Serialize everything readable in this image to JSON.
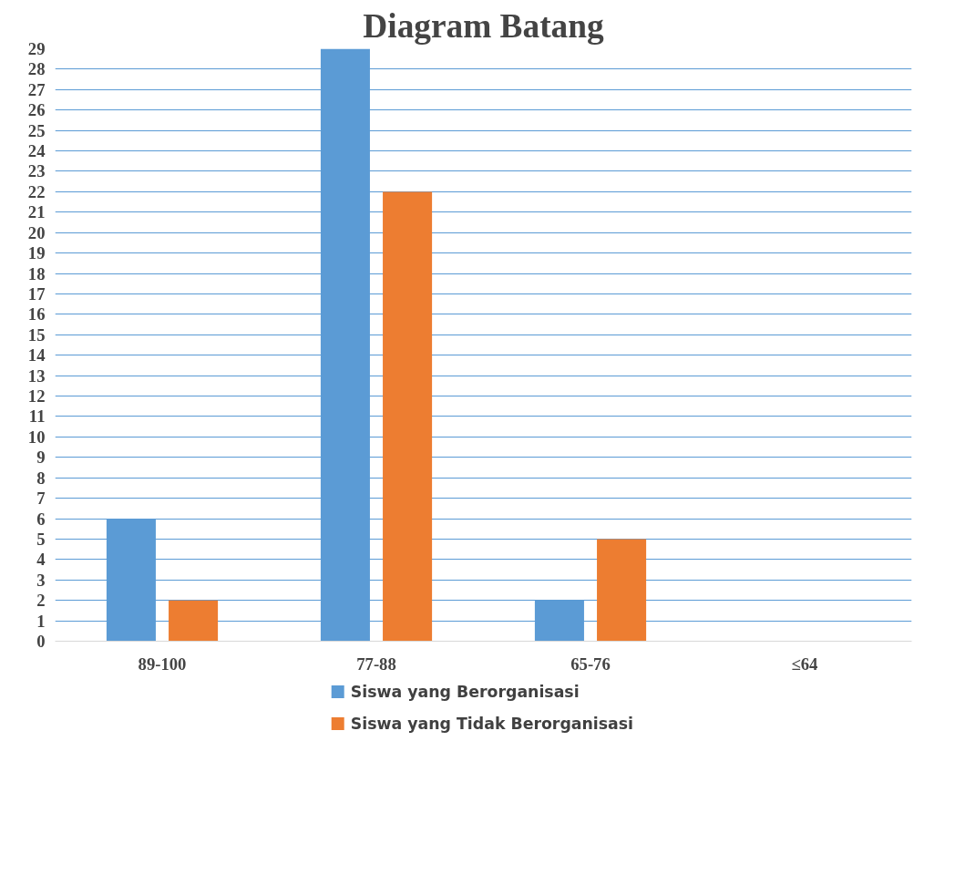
{
  "chart_data": {
    "type": "bar",
    "title": "Diagram Batang",
    "categories": [
      "89-100",
      "77-88",
      "65-76",
      "≤64"
    ],
    "series": [
      {
        "name": "Siswa yang Berorganisasi",
        "color": "#5b9bd5",
        "values": [
          6,
          29,
          2,
          0
        ]
      },
      {
        "name": "Siswa yang  Tidak Berorganisasi",
        "color": "#ed7d31",
        "values": [
          2,
          22,
          5,
          0
        ]
      }
    ],
    "ylim": [
      0,
      29
    ],
    "yticks": [
      0,
      1,
      2,
      3,
      4,
      5,
      6,
      7,
      8,
      9,
      10,
      11,
      12,
      13,
      14,
      15,
      16,
      17,
      18,
      19,
      20,
      21,
      22,
      23,
      24,
      25,
      26,
      27,
      28,
      29
    ],
    "grid": "y",
    "legend": "bottom"
  }
}
